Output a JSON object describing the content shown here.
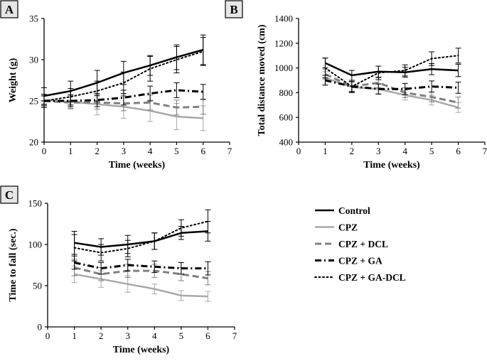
{
  "legend": [
    {
      "name": "Control",
      "color": "#000000",
      "dash": "solid",
      "width": 2.5
    },
    {
      "name": "CPZ",
      "color": "#a8a8a8",
      "dash": "solid",
      "width": 2.5
    },
    {
      "name": "CPZ + DCL",
      "color": "#808080",
      "dash": "dash",
      "width": 3
    },
    {
      "name": "CPZ + GA",
      "color": "#000000",
      "dash": "dashdot",
      "width": 3
    },
    {
      "name": "CPZ + GA-DCL",
      "color": "#000000",
      "dash": "dot",
      "width": 2
    }
  ],
  "chart_data": [
    {
      "panel": "A",
      "type": "line",
      "xlabel": "Time (weeks)",
      "ylabel": "Weight (g)",
      "xlim": [
        0,
        7
      ],
      "ylim": [
        20,
        35
      ],
      "xticks": [
        0,
        1,
        2,
        3,
        4,
        5,
        6,
        7
      ],
      "yticks": [
        20,
        25,
        30,
        35
      ],
      "x": [
        0,
        1,
        2,
        3,
        4,
        5,
        6
      ],
      "series": [
        {
          "name": "Control",
          "values": [
            25.6,
            26.2,
            27.2,
            28.4,
            29.3,
            30.3,
            31.2
          ],
          "err": [
            1.0,
            1.2,
            1.5,
            1.4,
            1.2,
            1.5,
            1.8
          ]
        },
        {
          "name": "CPZ",
          "values": [
            25.1,
            24.9,
            24.6,
            24.3,
            23.8,
            23.1,
            22.9
          ],
          "err": [
            0.6,
            0.9,
            1.3,
            1.4,
            1.3,
            1.6,
            1.5
          ]
        },
        {
          "name": "CPZ + DCL",
          "values": [
            25.0,
            24.8,
            24.8,
            24.7,
            24.8,
            24.2,
            24.3
          ],
          "err": [
            0.6,
            0.7,
            0.8,
            0.9,
            0.9,
            0.9,
            0.9
          ]
        },
        {
          "name": "CPZ + GA",
          "values": [
            25.0,
            25.0,
            25.1,
            25.4,
            25.9,
            26.3,
            26.1
          ],
          "err": [
            0.6,
            0.7,
            0.8,
            0.9,
            0.9,
            0.9,
            0.9
          ]
        },
        {
          "name": "CPZ + GA-DCL",
          "values": [
            25.0,
            25.5,
            26.2,
            27.2,
            28.9,
            30.0,
            31.0
          ],
          "err": [
            0.8,
            1.0,
            1.2,
            1.3,
            1.5,
            1.6,
            1.7
          ]
        }
      ]
    },
    {
      "panel": "B",
      "type": "line",
      "xlabel": "Time (weeks)",
      "ylabel": "Total distance moved (cm)",
      "xlim": [
        0,
        7
      ],
      "ylim": [
        400,
        1400
      ],
      "xticks": [
        0,
        1,
        2,
        3,
        4,
        5,
        6,
        7
      ],
      "yticks": [
        400,
        600,
        800,
        1000,
        1200,
        1400
      ],
      "x": [
        1,
        2,
        3,
        4,
        5,
        6
      ],
      "series": [
        {
          "name": "Control",
          "values": [
            1040,
            940,
            970,
            965,
            990,
            980
          ],
          "err": [
            40,
            40,
            45,
            40,
            45,
            50
          ]
        },
        {
          "name": "CPZ",
          "values": [
            920,
            845,
            830,
            780,
            740,
            680
          ],
          "err": [
            50,
            40,
            45,
            40,
            40,
            40
          ]
        },
        {
          "name": "CPZ + DCL",
          "values": [
            950,
            850,
            880,
            800,
            765,
            720
          ],
          "err": [
            40,
            40,
            40,
            40,
            40,
            45
          ]
        },
        {
          "name": "CPZ + GA",
          "values": [
            900,
            850,
            830,
            830,
            850,
            840
          ],
          "err": [
            40,
            40,
            40,
            45,
            45,
            45
          ]
        },
        {
          "name": "CPZ + GA-DCL",
          "values": [
            1000,
            850,
            960,
            980,
            1075,
            1100
          ],
          "err": [
            80,
            50,
            55,
            45,
            55,
            60
          ]
        }
      ]
    },
    {
      "panel": "C",
      "type": "line",
      "xlabel": "Time (weeks)",
      "ylabel": "Time to fall (sec.)",
      "xlim": [
        0,
        7
      ],
      "ylim": [
        0,
        150
      ],
      "xticks": [
        0,
        1,
        2,
        3,
        4,
        5,
        6,
        7
      ],
      "yticks": [
        0,
        50,
        100,
        150
      ],
      "x": [
        1,
        2,
        3,
        4,
        5,
        6
      ],
      "series": [
        {
          "name": "Control",
          "values": [
            102,
            97,
            100,
            104,
            114,
            116
          ],
          "err": [
            14,
            10,
            11,
            10,
            8,
            12
          ]
        },
        {
          "name": "CPZ",
          "values": [
            64,
            58,
            52,
            46,
            38,
            37
          ],
          "err": [
            10,
            10,
            10,
            6,
            6,
            6
          ]
        },
        {
          "name": "CPZ + DCL",
          "values": [
            72,
            64,
            68,
            68,
            64,
            59
          ],
          "err": [
            10,
            8,
            8,
            8,
            8,
            8
          ]
        },
        {
          "name": "CPZ + GA",
          "values": [
            78,
            71,
            75,
            73,
            71,
            71
          ],
          "err": [
            8,
            7,
            7,
            7,
            7,
            8
          ]
        },
        {
          "name": "CPZ + GA-DCL",
          "values": [
            96,
            90,
            95,
            104,
            120,
            128
          ],
          "err": [
            16,
            10,
            10,
            10,
            10,
            14
          ]
        }
      ]
    }
  ]
}
